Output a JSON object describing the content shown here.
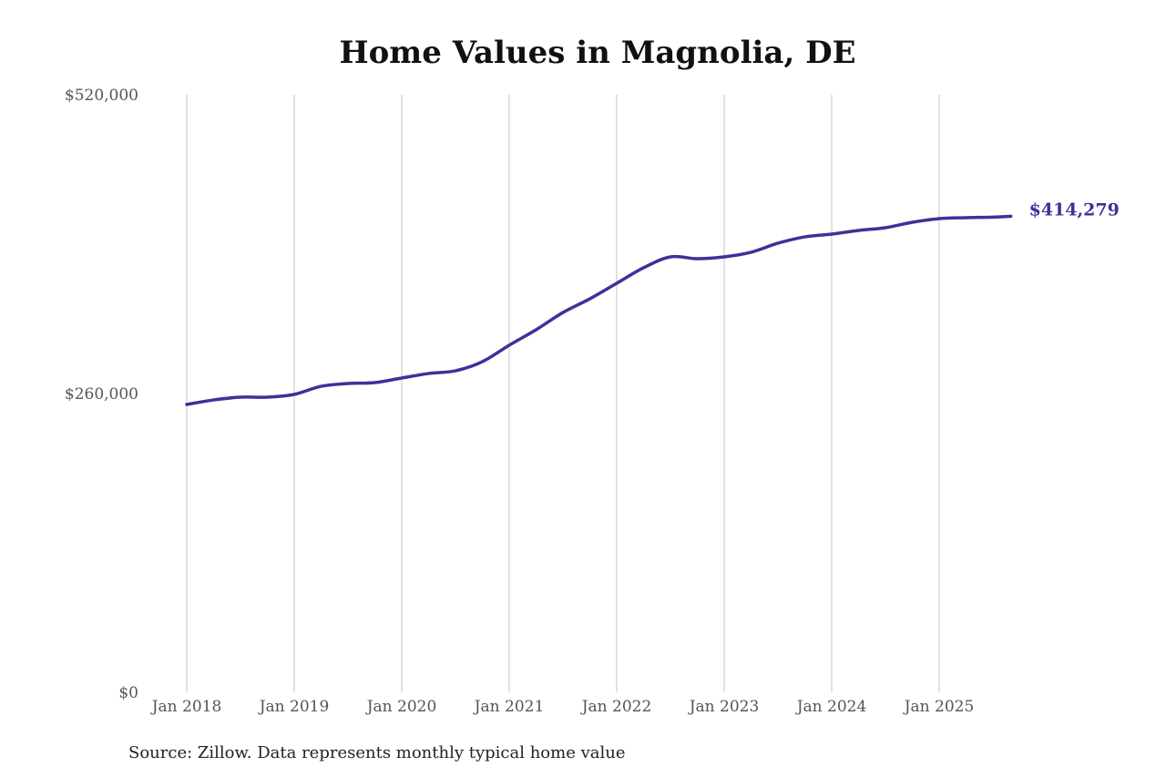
{
  "chart_data": {
    "type": "line",
    "title": "Home Values in Magnolia, DE",
    "source": "Source: Zillow. Data represents monthly typical home value",
    "xlabel": "",
    "ylabel": "",
    "ylim": [
      0,
      520000
    ],
    "yticks": [
      0,
      260000,
      520000
    ],
    "ytick_labels": [
      "$0",
      "$260,000",
      "$520,000"
    ],
    "xticks": [
      "2018-01",
      "2019-01",
      "2020-01",
      "2021-01",
      "2022-01",
      "2023-01",
      "2024-01",
      "2025-01"
    ],
    "xtick_labels": [
      "Jan 2018",
      "Jan 2019",
      "Jan 2020",
      "Jan 2021",
      "Jan 2022",
      "Jan 2023",
      "Jan 2024",
      "Jan 2025"
    ],
    "grid": "vertical",
    "line_color": "#3a3399",
    "end_label": "$414,279",
    "series": [
      {
        "x": [
          "2018-01",
          "2018-04",
          "2018-07",
          "2018-10",
          "2019-01",
          "2019-04",
          "2019-07",
          "2019-10",
          "2020-01",
          "2020-04",
          "2020-07",
          "2020-10",
          "2021-01",
          "2021-04",
          "2021-07",
          "2021-10",
          "2022-01",
          "2022-04",
          "2022-07",
          "2022-10",
          "2023-01",
          "2023-04",
          "2023-07",
          "2023-10",
          "2024-01",
          "2024-04",
          "2024-07",
          "2024-10",
          "2025-01",
          "2025-04",
          "2025-07",
          "2025-09"
        ],
        "y": [
          250500,
          254400,
          256800,
          256800,
          259200,
          266300,
          268700,
          269500,
          273500,
          277400,
          279800,
          287700,
          302000,
          315500,
          330500,
          342400,
          355900,
          369400,
          378900,
          377300,
          378900,
          382900,
          390800,
          396300,
          398700,
          401900,
          404300,
          409000,
          412200,
          413000,
          413500,
          414279
        ]
      }
    ]
  }
}
